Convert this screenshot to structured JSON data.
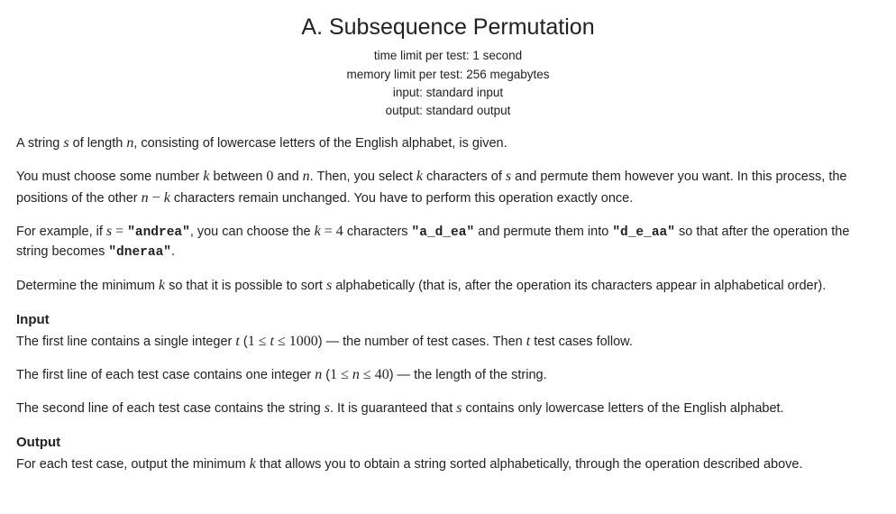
{
  "title": "A. Subsequence Permutation",
  "meta": {
    "time": "time limit per test: 1 second",
    "memory": "memory limit per test: 256 megabytes",
    "input": "input: standard input",
    "output": "output: standard output"
  },
  "p1": {
    "t1": "A string ",
    "s": "s",
    "t2": " of length ",
    "n": "n",
    "t3": ", consisting of lowercase letters of the English alphabet, is given."
  },
  "p2": {
    "t1": "You must choose some number ",
    "k": "k",
    "t2": " between ",
    "zero": "0",
    "t3": " and ",
    "n": "n",
    "t4": ". Then, you select ",
    "k2": "k",
    "t5": " characters of ",
    "s": "s",
    "t6": " and permute them however you want. In this process, the positions of the other ",
    "n2": "n",
    "minus": " − ",
    "k3": "k",
    "t7": " characters remain unchanged. You have to perform this operation exactly once."
  },
  "p3": {
    "t1": "For example, if ",
    "s": "s",
    "eq": " = ",
    "andrea": "\"andrea\"",
    "t2": ", you can choose the ",
    "k": "k",
    "eq2": " = ",
    "four": "4",
    "t3": " characters ",
    "adea": "\"a_d_ea\"",
    "t4": " and permute them into ",
    "deaa": "\"d_e_aa\"",
    "t5": " so that after the operation the string becomes ",
    "dneraa": "\"dneraa\"",
    "t6": "."
  },
  "p4": {
    "t1": "Determine the minimum ",
    "k": "k",
    "t2": " so that it is possible to sort ",
    "s": "s",
    "t3": " alphabetically (that is, after the operation its characters appear in alphabetical order)."
  },
  "input": {
    "head": "Input",
    "l1a": "The first line contains a single integer ",
    "t": "t",
    "l1b": " (",
    "one": "1",
    "le1": " ≤ ",
    "t2": "t",
    "le2": " ≤ ",
    "thousand": "1000",
    "l1c": ") — the number of test cases. Then ",
    "t3": "t",
    "l1d": " test cases follow.",
    "l2a": "The first line of each test case contains one integer ",
    "n": "n",
    "l2b": " (",
    "one2": "1",
    "le3": " ≤ ",
    "n2": "n",
    "le4": " ≤ ",
    "forty": "40",
    "l2c": ") — the length of the string.",
    "l3a": "The second line of each test case contains the string ",
    "s": "s",
    "l3b": ". It is guaranteed that ",
    "s2": "s",
    "l3c": " contains only lowercase letters of the English alphabet."
  },
  "output": {
    "head": "Output",
    "t1": "For each test case, output the minimum ",
    "k": "k",
    "t2": " that allows you to obtain a string sorted alphabetically, through the operation described above."
  }
}
